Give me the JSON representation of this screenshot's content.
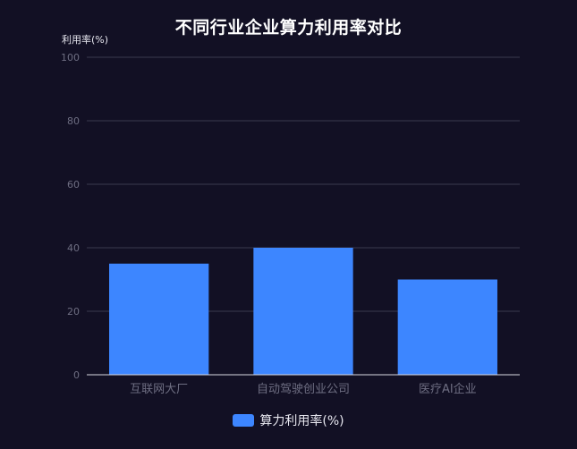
{
  "chart_data": {
    "type": "bar",
    "title": "不同行业企业算力利用率对比",
    "ylabel": "利用率(%)",
    "xlabel": "",
    "categories": [
      "互联网大厂",
      "自动驾驶创业公司",
      "医疗AI企业"
    ],
    "series": [
      {
        "name": "算力利用率(%)",
        "values": [
          35,
          40,
          30
        ],
        "color": "#3d86ff"
      }
    ],
    "ylim": [
      0,
      100
    ],
    "yticks": [
      0,
      20,
      40,
      60,
      80,
      100
    ],
    "grid": true,
    "legend": "bottom-center"
  },
  "colors": {
    "background": "#121024",
    "gridline": "#3a3a4e",
    "bar": "#3d86ff"
  }
}
